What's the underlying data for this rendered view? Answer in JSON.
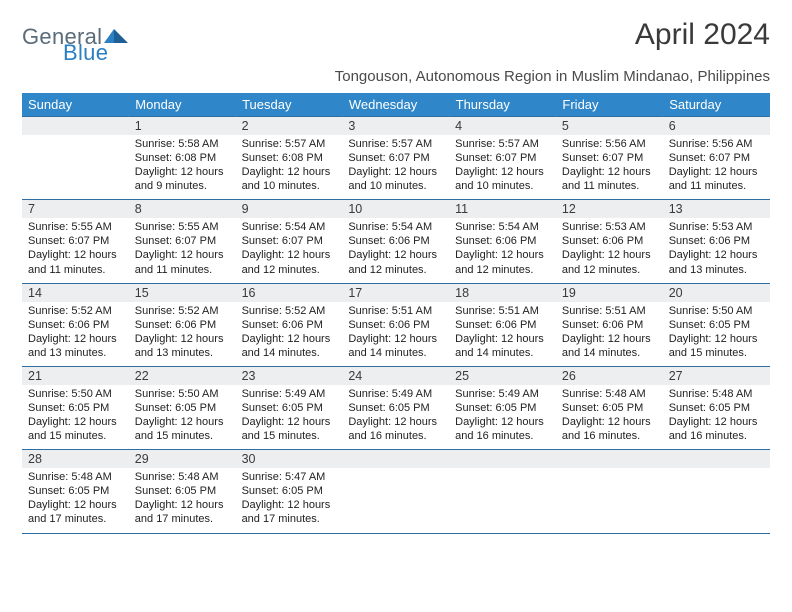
{
  "logo": {
    "text1": "General",
    "text2": "Blue"
  },
  "title": "April 2024",
  "subtitle": "Tongouson, Autonomous Region in Muslim Mindanao, Philippines",
  "colors": {
    "header_bg": "#2f87c9",
    "header_text": "#ffffff",
    "daynum_bg": "#eceeef",
    "rule": "#2f6ea3",
    "text": "#222222",
    "title_color": "#3a3a3a",
    "logo_gray": "#5a6b7a",
    "logo_blue": "#2b7fc3"
  },
  "days_of_week": [
    "Sunday",
    "Monday",
    "Tuesday",
    "Wednesday",
    "Thursday",
    "Friday",
    "Saturday"
  ],
  "weeks": [
    [
      null,
      {
        "n": "1",
        "sr": "Sunrise: 5:58 AM",
        "ss": "Sunset: 6:08 PM",
        "d1": "Daylight: 12 hours",
        "d2": "and 9 minutes."
      },
      {
        "n": "2",
        "sr": "Sunrise: 5:57 AM",
        "ss": "Sunset: 6:08 PM",
        "d1": "Daylight: 12 hours",
        "d2": "and 10 minutes."
      },
      {
        "n": "3",
        "sr": "Sunrise: 5:57 AM",
        "ss": "Sunset: 6:07 PM",
        "d1": "Daylight: 12 hours",
        "d2": "and 10 minutes."
      },
      {
        "n": "4",
        "sr": "Sunrise: 5:57 AM",
        "ss": "Sunset: 6:07 PM",
        "d1": "Daylight: 12 hours",
        "d2": "and 10 minutes."
      },
      {
        "n": "5",
        "sr": "Sunrise: 5:56 AM",
        "ss": "Sunset: 6:07 PM",
        "d1": "Daylight: 12 hours",
        "d2": "and 11 minutes."
      },
      {
        "n": "6",
        "sr": "Sunrise: 5:56 AM",
        "ss": "Sunset: 6:07 PM",
        "d1": "Daylight: 12 hours",
        "d2": "and 11 minutes."
      }
    ],
    [
      {
        "n": "7",
        "sr": "Sunrise: 5:55 AM",
        "ss": "Sunset: 6:07 PM",
        "d1": "Daylight: 12 hours",
        "d2": "and 11 minutes."
      },
      {
        "n": "8",
        "sr": "Sunrise: 5:55 AM",
        "ss": "Sunset: 6:07 PM",
        "d1": "Daylight: 12 hours",
        "d2": "and 11 minutes."
      },
      {
        "n": "9",
        "sr": "Sunrise: 5:54 AM",
        "ss": "Sunset: 6:07 PM",
        "d1": "Daylight: 12 hours",
        "d2": "and 12 minutes."
      },
      {
        "n": "10",
        "sr": "Sunrise: 5:54 AM",
        "ss": "Sunset: 6:06 PM",
        "d1": "Daylight: 12 hours",
        "d2": "and 12 minutes."
      },
      {
        "n": "11",
        "sr": "Sunrise: 5:54 AM",
        "ss": "Sunset: 6:06 PM",
        "d1": "Daylight: 12 hours",
        "d2": "and 12 minutes."
      },
      {
        "n": "12",
        "sr": "Sunrise: 5:53 AM",
        "ss": "Sunset: 6:06 PM",
        "d1": "Daylight: 12 hours",
        "d2": "and 12 minutes."
      },
      {
        "n": "13",
        "sr": "Sunrise: 5:53 AM",
        "ss": "Sunset: 6:06 PM",
        "d1": "Daylight: 12 hours",
        "d2": "and 13 minutes."
      }
    ],
    [
      {
        "n": "14",
        "sr": "Sunrise: 5:52 AM",
        "ss": "Sunset: 6:06 PM",
        "d1": "Daylight: 12 hours",
        "d2": "and 13 minutes."
      },
      {
        "n": "15",
        "sr": "Sunrise: 5:52 AM",
        "ss": "Sunset: 6:06 PM",
        "d1": "Daylight: 12 hours",
        "d2": "and 13 minutes."
      },
      {
        "n": "16",
        "sr": "Sunrise: 5:52 AM",
        "ss": "Sunset: 6:06 PM",
        "d1": "Daylight: 12 hours",
        "d2": "and 14 minutes."
      },
      {
        "n": "17",
        "sr": "Sunrise: 5:51 AM",
        "ss": "Sunset: 6:06 PM",
        "d1": "Daylight: 12 hours",
        "d2": "and 14 minutes."
      },
      {
        "n": "18",
        "sr": "Sunrise: 5:51 AM",
        "ss": "Sunset: 6:06 PM",
        "d1": "Daylight: 12 hours",
        "d2": "and 14 minutes."
      },
      {
        "n": "19",
        "sr": "Sunrise: 5:51 AM",
        "ss": "Sunset: 6:06 PM",
        "d1": "Daylight: 12 hours",
        "d2": "and 14 minutes."
      },
      {
        "n": "20",
        "sr": "Sunrise: 5:50 AM",
        "ss": "Sunset: 6:05 PM",
        "d1": "Daylight: 12 hours",
        "d2": "and 15 minutes."
      }
    ],
    [
      {
        "n": "21",
        "sr": "Sunrise: 5:50 AM",
        "ss": "Sunset: 6:05 PM",
        "d1": "Daylight: 12 hours",
        "d2": "and 15 minutes."
      },
      {
        "n": "22",
        "sr": "Sunrise: 5:50 AM",
        "ss": "Sunset: 6:05 PM",
        "d1": "Daylight: 12 hours",
        "d2": "and 15 minutes."
      },
      {
        "n": "23",
        "sr": "Sunrise: 5:49 AM",
        "ss": "Sunset: 6:05 PM",
        "d1": "Daylight: 12 hours",
        "d2": "and 15 minutes."
      },
      {
        "n": "24",
        "sr": "Sunrise: 5:49 AM",
        "ss": "Sunset: 6:05 PM",
        "d1": "Daylight: 12 hours",
        "d2": "and 16 minutes."
      },
      {
        "n": "25",
        "sr": "Sunrise: 5:49 AM",
        "ss": "Sunset: 6:05 PM",
        "d1": "Daylight: 12 hours",
        "d2": "and 16 minutes."
      },
      {
        "n": "26",
        "sr": "Sunrise: 5:48 AM",
        "ss": "Sunset: 6:05 PM",
        "d1": "Daylight: 12 hours",
        "d2": "and 16 minutes."
      },
      {
        "n": "27",
        "sr": "Sunrise: 5:48 AM",
        "ss": "Sunset: 6:05 PM",
        "d1": "Daylight: 12 hours",
        "d2": "and 16 minutes."
      }
    ],
    [
      {
        "n": "28",
        "sr": "Sunrise: 5:48 AM",
        "ss": "Sunset: 6:05 PM",
        "d1": "Daylight: 12 hours",
        "d2": "and 17 minutes."
      },
      {
        "n": "29",
        "sr": "Sunrise: 5:48 AM",
        "ss": "Sunset: 6:05 PM",
        "d1": "Daylight: 12 hours",
        "d2": "and 17 minutes."
      },
      {
        "n": "30",
        "sr": "Sunrise: 5:47 AM",
        "ss": "Sunset: 6:05 PM",
        "d1": "Daylight: 12 hours",
        "d2": "and 17 minutes."
      },
      null,
      null,
      null,
      null
    ]
  ]
}
